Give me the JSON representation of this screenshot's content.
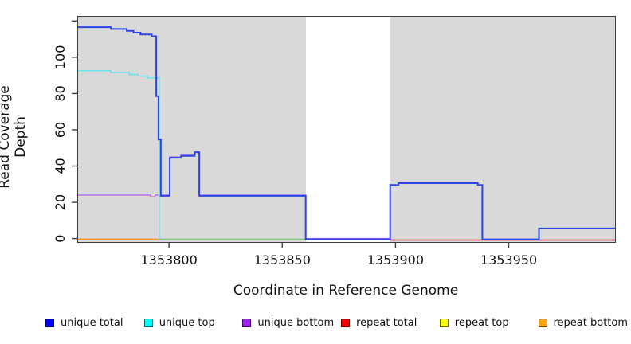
{
  "chart_data": {
    "type": "line",
    "title": "",
    "xlabel": "Coordinate in Reference Genome",
    "ylabel": "Read Coverage Depth",
    "xlim": [
      1353759.5,
      1353996.6
    ],
    "ylim": [
      -1.49,
      122.77
    ],
    "grid": false,
    "plot_bg_color": "#d9d9d9",
    "axis_color": "#3c3c3c",
    "highlight_region": {
      "x0": 1353860,
      "x1": 1353897.3,
      "color": "#ffffff",
      "note": "white band over gray panel background"
    },
    "x_ticks": [
      {
        "v": 1353800,
        "label": "1353800"
      },
      {
        "v": 1353850,
        "label": "1353850"
      },
      {
        "v": 1353900,
        "label": "1353900"
      },
      {
        "v": 1353950,
        "label": "1353950"
      }
    ],
    "y_ticks": [
      {
        "v": 0,
        "label": "0"
      },
      {
        "v": 20,
        "label": "20"
      },
      {
        "v": 40,
        "label": "40"
      },
      {
        "v": 60,
        "label": "60"
      },
      {
        "v": 80,
        "label": "80"
      },
      {
        "v": 100,
        "label": "100"
      },
      {
        "v": 120,
        "label": ""
      }
    ],
    "legend_position": "bottom",
    "legend": [
      {
        "label": "unique total",
        "color": "#0000ff"
      },
      {
        "label": "unique top",
        "color": "#00ffff"
      },
      {
        "label": "unique bottom",
        "color": "#a020f0"
      },
      {
        "label": "repeat total",
        "color": "#ff0000"
      },
      {
        "label": "repeat top",
        "color": "#ffff00"
      },
      {
        "label": "repeat bottom",
        "color": "#ffa500"
      }
    ],
    "series": [
      {
        "name": "repeat top (visible as green cyan+yellow overlap at depth 0)",
        "render": {
          "color": "#74ca74",
          "width": 1.7,
          "dy": 0
        },
        "points": [
          [
            1353795,
            0
          ],
          [
            1353860,
            0
          ]
        ]
      },
      {
        "name": "repeat bottom",
        "render": {
          "color": "#ff9220",
          "width": 1.9,
          "dy": 0
        },
        "points": [
          [
            1353759.5,
            0
          ],
          [
            1353795,
            0
          ]
        ]
      },
      {
        "name": "repeat total",
        "render": {
          "color": "#e25568",
          "width": 1.7,
          "dy": 0.9
        },
        "points": [
          [
            1353897.3,
            0
          ],
          [
            1353996.6,
            0
          ]
        ]
      },
      {
        "name": "unique bottom",
        "render": {
          "color": "#b06ae8",
          "width": 1.4,
          "dy": -1
        },
        "points": [
          [
            1353759.5,
            24
          ],
          [
            1353791.5,
            23
          ],
          [
            1353793.5,
            24
          ],
          [
            1353800,
            45
          ],
          [
            1353805,
            46
          ],
          [
            1353811,
            48
          ],
          [
            1353813,
            24
          ],
          [
            1353860,
            0
          ],
          [
            1353897.3,
            0
          ]
        ]
      },
      {
        "name": "unique top",
        "render": {
          "color": "#6fe3ec",
          "width": 1.6,
          "dy": 0
        },
        "points": [
          [
            1353759.5,
            93
          ],
          [
            1353774,
            92
          ],
          [
            1353782,
            91
          ],
          [
            1353786,
            90
          ],
          [
            1353790,
            89
          ],
          [
            1353795.3,
            0
          ]
        ]
      },
      {
        "name": "unique total",
        "render": {
          "color": "#2d44e6",
          "width": 2,
          "dy": 0
        },
        "points": [
          [
            1353759.5,
            117
          ],
          [
            1353774,
            116
          ],
          [
            1353781,
            115
          ],
          [
            1353784,
            114
          ],
          [
            1353787,
            113
          ],
          [
            1353792,
            112
          ],
          [
            1353794,
            79
          ],
          [
            1353795,
            55
          ],
          [
            1353796,
            24
          ],
          [
            1353800,
            45
          ],
          [
            1353805,
            46
          ],
          [
            1353811,
            48
          ],
          [
            1353813,
            24
          ],
          [
            1353860,
            0
          ],
          [
            1353897.3,
            30
          ],
          [
            1353901,
            31
          ],
          [
            1353936,
            30
          ],
          [
            1353938,
            0
          ],
          [
            1353963,
            6
          ],
          [
            1353996.6,
            6
          ]
        ]
      }
    ]
  }
}
